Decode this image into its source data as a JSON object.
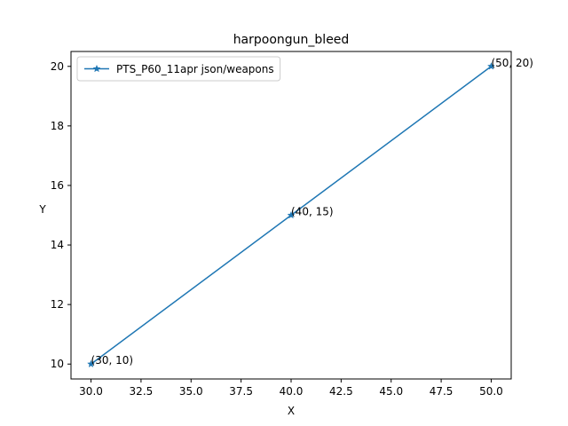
{
  "chart_data": {
    "type": "line",
    "title": "harpoongun_bleed",
    "xlabel": "X",
    "ylabel": "Y",
    "xlim": [
      29.0,
      51.0
    ],
    "ylim": [
      9.5,
      20.5
    ],
    "xticks": [
      "30.0",
      "32.5",
      "35.0",
      "37.5",
      "40.0",
      "42.5",
      "45.0",
      "47.5",
      "50.0"
    ],
    "xtick_values": [
      30.0,
      32.5,
      35.0,
      37.5,
      40.0,
      42.5,
      45.0,
      47.5,
      50.0
    ],
    "yticks": [
      "10",
      "12",
      "14",
      "16",
      "18",
      "20"
    ],
    "ytick_values": [
      10,
      12,
      14,
      16,
      18,
      20
    ],
    "grid": false,
    "legend_position": "top-left",
    "series": [
      {
        "name": "PTS_P60_11apr json/weapons",
        "color": "#1f77b4",
        "marker": "star",
        "x": [
          30,
          40,
          50
        ],
        "y": [
          10,
          15,
          20
        ]
      }
    ],
    "annotations": [
      {
        "text": "(30, 10)",
        "x": 30,
        "y": 10
      },
      {
        "text": "(40, 15)",
        "x": 40,
        "y": 15
      },
      {
        "text": "(50, 20)",
        "x": 50,
        "y": 20
      }
    ]
  }
}
